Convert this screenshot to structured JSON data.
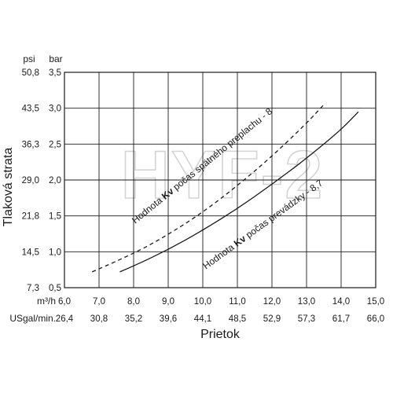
{
  "chart_data": {
    "type": "line",
    "watermark": "HYF-2",
    "xlabel": "Prietok",
    "ylabel": "Tlaková strata",
    "x_unit_primary": "m³/h",
    "x_unit_secondary": "USgal/min.",
    "y_unit_primary": "bar",
    "y_unit_secondary": "psi",
    "xlim": [
      6.0,
      15.0
    ],
    "ylim": [
      0.5,
      3.5
    ],
    "x_ticks": [
      "6,0",
      "7,0",
      "8,0",
      "9,0",
      "10,0",
      "11,0",
      "12,0",
      "13,0",
      "14,0",
      "15,0"
    ],
    "x_ticks_secondary": [
      "26,4",
      "30,8",
      "35,2",
      "39,6",
      "44,1",
      "48,5",
      "52,9",
      "57,3",
      "61,7",
      "66,0"
    ],
    "y_ticks": [
      "0,5",
      "1,0",
      "1,5",
      "2,0",
      "2,5",
      "3,0",
      "3,5"
    ],
    "y_ticks_secondary": [
      "7,3",
      "14,5",
      "21,8",
      "29,0",
      "36,3",
      "43,5",
      "50,8"
    ],
    "grid": true,
    "series": [
      {
        "name": "Hodnota Kv počas spätného preplachu - 8",
        "label_prefix": "Hodnota ",
        "label_bold": "Kv",
        "label_suffix": " počas spätného preplachu - 8",
        "style": "dashed",
        "x": [
          6.8,
          8.0,
          9.0,
          10.0,
          11.0,
          12.0,
          13.0,
          13.5
        ],
        "y": [
          0.72,
          0.97,
          1.24,
          1.55,
          1.92,
          2.33,
          2.79,
          3.05
        ]
      },
      {
        "name": "Hodnota Kv počas prevádzky - 8,7",
        "label_prefix": "Hodnota ",
        "label_bold": "Kv",
        "label_suffix": " počas prevádzky - 8,7",
        "style": "solid",
        "x": [
          7.6,
          8.0,
          9.0,
          10.0,
          11.0,
          12.0,
          13.0,
          14.0,
          14.5
        ],
        "y": [
          0.72,
          0.8,
          1.03,
          1.3,
          1.6,
          1.94,
          2.3,
          2.7,
          2.95
        ]
      }
    ]
  }
}
